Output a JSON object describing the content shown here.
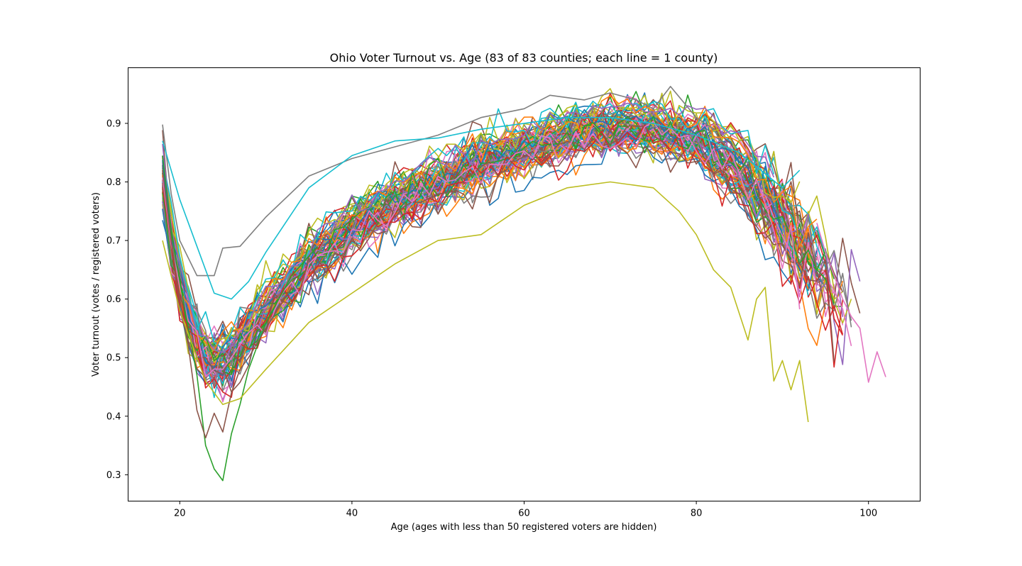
{
  "chart_data": {
    "type": "line",
    "title": "Ohio Voter Turnout vs. Age (83 of 83 counties; each line = 1 county)",
    "xlabel": "Age (ages with less than 50 registered voters are hidden)",
    "ylabel": "Voter turnout (votes / registered voters)",
    "xlim": [
      14,
      106
    ],
    "ylim": [
      0.255,
      0.995
    ],
    "xticks": [
      20,
      40,
      60,
      80,
      100
    ],
    "yticks": [
      0.3,
      0.4,
      0.5,
      0.6,
      0.7,
      0.8,
      0.9
    ],
    "grid": false,
    "legend": "none",
    "colors": [
      "#1f77b4",
      "#ff7f0e",
      "#2ca02c",
      "#d62728",
      "#9467bd",
      "#8c564b",
      "#e377c2",
      "#7f7f7f",
      "#bcbd22",
      "#17becf"
    ],
    "series_count": 83,
    "notable_series": [
      {
        "color": "#2ca02c",
        "x": [
          18,
          19,
          20,
          21,
          22,
          23,
          24,
          25,
          26,
          27,
          28,
          30,
          33,
          36
        ],
        "y": [
          0.845,
          0.72,
          0.63,
          0.55,
          0.47,
          0.35,
          0.31,
          0.29,
          0.37,
          0.42,
          0.48,
          0.56,
          0.64,
          0.69
        ]
      },
      {
        "color": "#8c564b",
        "x": [
          18,
          19,
          20,
          21,
          22,
          23,
          24,
          25,
          26,
          27,
          28,
          30,
          33
        ],
        "y": [
          0.82,
          0.7,
          0.6,
          0.52,
          0.41,
          0.363,
          0.405,
          0.373,
          0.44,
          0.48,
          0.5,
          0.55,
          0.62
        ]
      },
      {
        "color": "#bcbd22",
        "x": [
          18,
          20,
          23,
          25,
          27,
          30,
          35,
          40,
          45,
          50,
          55,
          60,
          65,
          70,
          75,
          78,
          80,
          82,
          84,
          86,
          87,
          88,
          89,
          90,
          91,
          92,
          93
        ],
        "y": [
          0.7,
          0.58,
          0.46,
          0.42,
          0.43,
          0.48,
          0.56,
          0.61,
          0.66,
          0.7,
          0.71,
          0.76,
          0.79,
          0.8,
          0.79,
          0.75,
          0.71,
          0.65,
          0.62,
          0.53,
          0.6,
          0.62,
          0.46,
          0.495,
          0.445,
          0.495,
          0.39
        ]
      },
      {
        "color": "#7f7f7f",
        "x": [
          18,
          19,
          20,
          22,
          24,
          25,
          27,
          30,
          35,
          40,
          45,
          50,
          55,
          60,
          63,
          67,
          70,
          73,
          75,
          77,
          80,
          82
        ],
        "y": [
          0.898,
          0.78,
          0.7,
          0.64,
          0.64,
          0.687,
          0.69,
          0.74,
          0.81,
          0.84,
          0.86,
          0.88,
          0.91,
          0.925,
          0.948,
          0.94,
          0.952,
          0.94,
          0.925,
          0.963,
          0.91,
          0.89
        ]
      },
      {
        "color": "#17becf",
        "x": [
          18,
          20,
          22,
          24,
          26,
          28,
          30,
          35,
          40,
          45,
          50,
          55,
          60,
          65,
          70,
          75,
          80,
          85,
          90,
          92
        ],
        "y": [
          0.87,
          0.77,
          0.69,
          0.61,
          0.6,
          0.63,
          0.68,
          0.79,
          0.845,
          0.87,
          0.875,
          0.89,
          0.9,
          0.91,
          0.91,
          0.9,
          0.88,
          0.85,
          0.79,
          0.82
        ]
      },
      {
        "color": "#e377c2",
        "x": [
          94,
          95,
          96,
          97,
          98,
          99,
          100,
          101,
          102
        ],
        "y": [
          0.73,
          0.68,
          0.64,
          0.6,
          0.57,
          0.55,
          0.458,
          0.51,
          0.467
        ]
      }
    ]
  }
}
